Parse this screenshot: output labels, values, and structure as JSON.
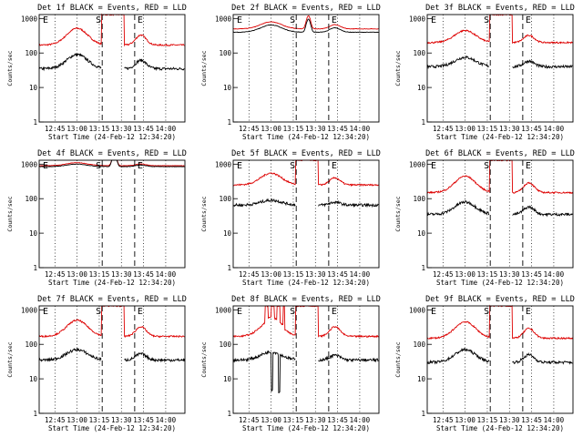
{
  "colors": {
    "events": "#000000",
    "lld": "#dd0000",
    "background": "#ffffff"
  },
  "axes": {
    "y_label": "Counts/sec",
    "y_ticks": [
      "1",
      "10",
      "100",
      "1000"
    ],
    "y_scale": "log",
    "y_range": [
      1,
      1300
    ],
    "x_range": [
      "12:34:20",
      "14:13:00"
    ],
    "x_ticks": [
      "12:45",
      "13:00",
      "13:15",
      "13:30",
      "13:45",
      "14:00"
    ],
    "x_label": "Start Time (24-Feb-12 12:34:20)"
  },
  "markers": {
    "start_time": "13:17",
    "end_time": "13:39",
    "labels": {
      "s": "S",
      "e": "E"
    },
    "end_left_label": "E"
  },
  "chart_data": [
    {
      "type": "line",
      "title": "Det 1f BLACK = Events, RED = LLD",
      "profile": "strong",
      "series": [
        {
          "name": "Events",
          "lld_base": 170,
          "lld_peak": 520,
          "ev_base": 35,
          "ev_peak": 90
        },
        {
          "name": "LLD"
        }
      ]
    },
    {
      "type": "line",
      "title": "Det 2f BLACK = Events, RED = LLD",
      "profile": "flat",
      "series": [
        {
          "name": "Events",
          "lld_base": 500,
          "lld_peak": 800,
          "ev_base": 400,
          "ev_peak": 650
        },
        {
          "name": "LLD"
        }
      ]
    },
    {
      "type": "line",
      "title": "Det 3f BLACK = Events, RED = LLD",
      "profile": "strong",
      "series": [
        {
          "name": "Events",
          "lld_base": 200,
          "lld_peak": 450,
          "ev_base": 40,
          "ev_peak": 75
        },
        {
          "name": "LLD"
        }
      ]
    },
    {
      "type": "line",
      "title": "Det 4f BLACK = Events, RED = LLD",
      "profile": "flat",
      "series": [
        {
          "name": "Events",
          "lld_base": 900,
          "lld_peak": 1100,
          "ev_base": 850,
          "ev_peak": 1000
        },
        {
          "name": "LLD"
        }
      ]
    },
    {
      "type": "line",
      "title": "Det 5f BLACK = Events, RED = LLD",
      "profile": "strong",
      "series": [
        {
          "name": "Events",
          "lld_base": 250,
          "lld_peak": 550,
          "ev_base": 65,
          "ev_peak": 90
        },
        {
          "name": "LLD"
        }
      ]
    },
    {
      "type": "line",
      "title": "Det 6f BLACK = Events, RED = LLD",
      "profile": "strong",
      "series": [
        {
          "name": "Events",
          "lld_base": 150,
          "lld_peak": 450,
          "ev_base": 35,
          "ev_peak": 80
        },
        {
          "name": "LLD"
        }
      ]
    },
    {
      "type": "line",
      "title": "Det 7f BLACK = Events, RED = LLD",
      "profile": "strong",
      "series": [
        {
          "name": "Events",
          "lld_base": 170,
          "lld_peak": 500,
          "ev_base": 35,
          "ev_peak": 70
        },
        {
          "name": "LLD"
        }
      ]
    },
    {
      "type": "line",
      "title": "Det 8f BLACK = Events, RED = LLD",
      "profile": "spiky",
      "series": [
        {
          "name": "Events",
          "lld_base": 170,
          "lld_peak": 500,
          "ev_base": 35,
          "ev_peak": 60
        },
        {
          "name": "LLD"
        }
      ]
    },
    {
      "type": "line",
      "title": "Det 9f BLACK = Events, RED = LLD",
      "profile": "strong",
      "series": [
        {
          "name": "Events",
          "lld_base": 150,
          "lld_peak": 450,
          "ev_base": 30,
          "ev_peak": 70
        },
        {
          "name": "LLD"
        }
      ]
    }
  ]
}
